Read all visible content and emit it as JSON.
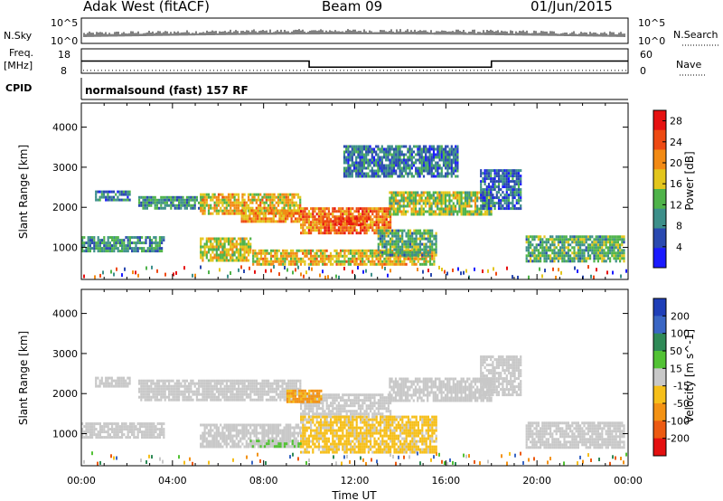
{
  "header": {
    "title": "Adak West (fitACF)",
    "beam": "Beam 09",
    "date": "01/Jun/2015"
  },
  "status_panels": {
    "nsky_label": "N.Sky",
    "nsky_ticks": [
      "10^5",
      "10^0"
    ],
    "nsearch_label": "N.Search",
    "nsearch_ticks": [
      "10^5",
      "10^0"
    ],
    "freq_label": "Freq.",
    "freq_unit": "[MHz]",
    "freq_ticks": [
      "18",
      "8"
    ],
    "nave_label": "Nave",
    "nave_ticks": [
      "60",
      "0"
    ],
    "cpid_label": "CPID",
    "cpid_value": "normalsound (fast) 157 RF",
    "freq_trace": [
      {
        "t": 0,
        "mhz": 13
      },
      {
        "t": 10,
        "mhz": 13
      },
      {
        "t": 10,
        "mhz": 10.5
      },
      {
        "t": 18,
        "mhz": 10.5
      },
      {
        "t": 18,
        "mhz": 13
      },
      {
        "t": 24,
        "mhz": 13
      }
    ],
    "nave_level": 7
  },
  "chart_data": [
    {
      "type": "heatmap",
      "title": "Power",
      "ylabel": "Slant Range [km]",
      "yticks": [
        "1000",
        "2000",
        "3000",
        "4000"
      ],
      "ylim": [
        200,
        4600
      ],
      "xlim": [
        0,
        24
      ],
      "colorbar": {
        "label": "Power [dB]",
        "ticks": [
          "4",
          "8",
          "12",
          "16",
          "20",
          "24",
          "28"
        ],
        "range": [
          0,
          30
        ],
        "colors": [
          "#1a1aff",
          "#2a49b0",
          "#3d8f8a",
          "#4fb34a",
          "#e3c61c",
          "#f28a14",
          "#ee4a13",
          "#e61111"
        ]
      },
      "regions": [
        {
          "t0": 0.6,
          "t1": 2.1,
          "r0": 2180,
          "r1": 2420,
          "level": 8
        },
        {
          "t0": 0.0,
          "t1": 3.6,
          "r0": 900,
          "r1": 1280,
          "level": 10
        },
        {
          "t0": 2.5,
          "t1": 5.3,
          "r0": 1950,
          "r1": 2280,
          "level": 10
        },
        {
          "t0": 5.2,
          "t1": 9.6,
          "r0": 1850,
          "r1": 2350,
          "level": 18
        },
        {
          "t0": 7.0,
          "t1": 9.6,
          "r0": 1650,
          "r1": 1950,
          "level": 20
        },
        {
          "t0": 9.6,
          "t1": 13.6,
          "r0": 1350,
          "r1": 2000,
          "level": 22
        },
        {
          "t0": 10.4,
          "t1": 12.6,
          "r0": 1550,
          "r1": 1750,
          "level": 26
        },
        {
          "t0": 13.5,
          "t1": 18.0,
          "r0": 1800,
          "r1": 2400,
          "level": 15
        },
        {
          "t0": 17.5,
          "t1": 19.3,
          "r0": 2000,
          "r1": 2950,
          "level": 7
        },
        {
          "t0": 5.2,
          "t1": 7.4,
          "r0": 700,
          "r1": 1250,
          "level": 16
        },
        {
          "t0": 7.5,
          "t1": 15.5,
          "r0": 550,
          "r1": 950,
          "level": 18
        },
        {
          "t0": 13.0,
          "t1": 15.6,
          "r0": 800,
          "r1": 1450,
          "level": 12
        },
        {
          "t0": 19.5,
          "t1": 23.8,
          "r0": 650,
          "r1": 1300,
          "level": 12
        },
        {
          "t0": 11.5,
          "t1": 16.5,
          "r0": 2750,
          "r1": 3550,
          "level": 8
        }
      ]
    },
    {
      "type": "heatmap",
      "title": "Velocity",
      "ylabel": "Slant Range [km]",
      "yticks": [
        "1000",
        "2000",
        "3000",
        "4000"
      ],
      "ylim": [
        200,
        4600
      ],
      "xlim": [
        0,
        24
      ],
      "xlabel": "Time UT",
      "xticks": [
        "00:00",
        "04:00",
        "08:00",
        "12:00",
        "16:00",
        "20:00",
        "00:00"
      ],
      "colorbar": {
        "label": "Velocity [m s^-1]",
        "ticks": [
          "200",
          "100",
          "50",
          "15",
          "-15",
          "-50",
          "-100",
          "-200"
        ],
        "range": [
          -250,
          250
        ],
        "colors": [
          "#1f3fb8",
          "#3a66c4",
          "#2f8a57",
          "#52c234",
          "#c8c8c8",
          "#f6bf1a",
          "#f39214",
          "#ec5a12",
          "#e41010"
        ]
      },
      "regions": [
        {
          "t0": 0.6,
          "t1": 2.1,
          "r0": 2180,
          "r1": 2420,
          "level": 0
        },
        {
          "t0": 0.0,
          "t1": 3.6,
          "r0": 900,
          "r1": 1280,
          "level": 0
        },
        {
          "t0": 2.5,
          "t1": 9.6,
          "r0": 1850,
          "r1": 2350,
          "level": 0
        },
        {
          "t0": 9.6,
          "t1": 13.6,
          "r0": 1400,
          "r1": 2000,
          "level": 0
        },
        {
          "t0": 9.0,
          "t1": 10.5,
          "r0": 1800,
          "r1": 2100,
          "level": -90
        },
        {
          "t0": 13.5,
          "t1": 18.0,
          "r0": 1800,
          "r1": 2400,
          "level": 0
        },
        {
          "t0": 17.5,
          "t1": 19.3,
          "r0": 2000,
          "r1": 2950,
          "level": 0
        },
        {
          "t0": 5.2,
          "t1": 9.6,
          "r0": 700,
          "r1": 1250,
          "level": 0
        },
        {
          "t0": 9.6,
          "t1": 15.6,
          "r0": 550,
          "r1": 1450,
          "level": -40
        },
        {
          "t0": 7.4,
          "t1": 9.6,
          "r0": 650,
          "r1": 850,
          "level": 25
        },
        {
          "t0": 19.5,
          "t1": 23.8,
          "r0": 650,
          "r1": 1300,
          "level": 0
        }
      ]
    }
  ]
}
